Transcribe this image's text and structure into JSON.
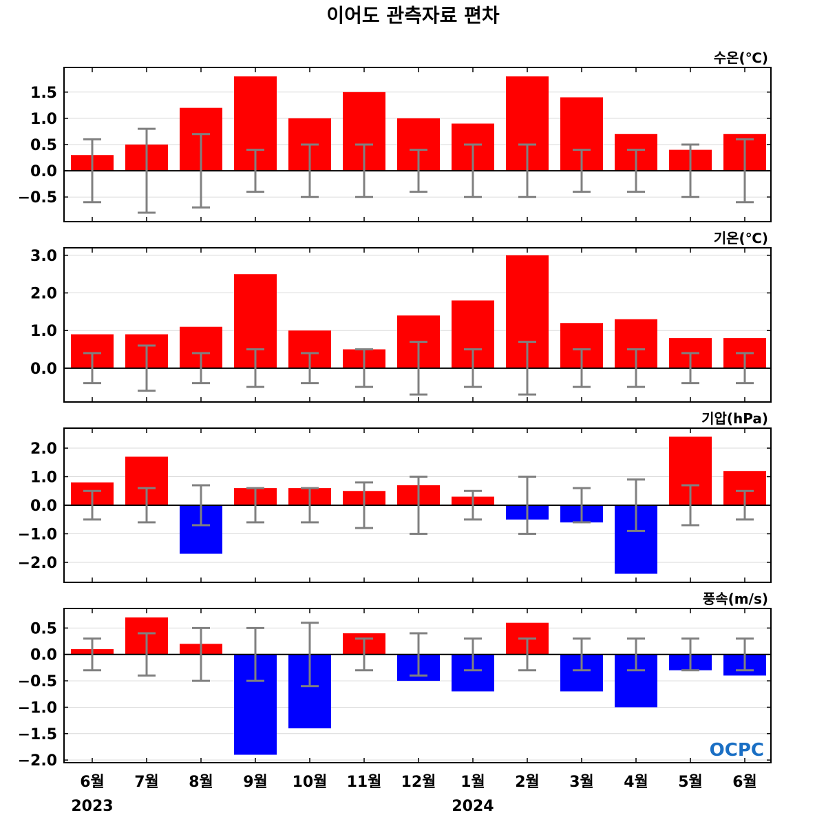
{
  "title": "이어도 관측자료 편차",
  "logo": "OCPC",
  "colors": {
    "positive": "#ff0000",
    "negative": "#0000ff",
    "error_bar": "#808080",
    "zero_line": "#000000",
    "grid": "#d9d9d9",
    "logo": "#1a6fc4"
  },
  "x_months": [
    "6월",
    "7월",
    "8월",
    "9월",
    "10월",
    "11월",
    "12월",
    "1월",
    "2월",
    "3월",
    "4월",
    "5월",
    "6월"
  ],
  "x_years": [
    {
      "label": "2023",
      "under_index": 0
    },
    {
      "label": "2024",
      "under_index": 7
    }
  ],
  "chart_data": [
    {
      "type": "bar",
      "unit": "수온(℃)",
      "categories": [
        "6월",
        "7월",
        "8월",
        "9월",
        "10월",
        "11월",
        "12월",
        "1월",
        "2월",
        "3월",
        "4월",
        "5월",
        "6월"
      ],
      "values": [
        0.3,
        0.5,
        1.2,
        1.8,
        1.0,
        1.5,
        1.0,
        0.9,
        1.8,
        1.4,
        0.7,
        0.4,
        0.7
      ],
      "error_upper": [
        0.6,
        0.8,
        0.7,
        0.4,
        0.5,
        0.5,
        0.4,
        0.5,
        0.5,
        0.4,
        0.4,
        0.5,
        0.6
      ],
      "error_lower": [
        -0.6,
        -0.8,
        -0.7,
        -0.4,
        -0.5,
        -0.5,
        -0.4,
        -0.5,
        -0.5,
        -0.4,
        -0.4,
        -0.5,
        -0.6
      ],
      "ylim": [
        -0.97,
        1.97
      ],
      "yticks": [
        -0.5,
        0.0,
        0.5,
        1.0,
        1.5
      ],
      "ytick_labels": [
        "−0.5",
        "0.0",
        "0.5",
        "1.0",
        "1.5"
      ]
    },
    {
      "type": "bar",
      "unit": "기온(℃)",
      "categories": [
        "6월",
        "7월",
        "8월",
        "9월",
        "10월",
        "11월",
        "12월",
        "1월",
        "2월",
        "3월",
        "4월",
        "5월",
        "6월"
      ],
      "values": [
        0.9,
        0.9,
        1.1,
        2.5,
        1.0,
        0.5,
        1.4,
        1.8,
        3.0,
        1.2,
        1.3,
        0.8,
        0.8
      ],
      "error_upper": [
        0.4,
        0.6,
        0.4,
        0.5,
        0.4,
        0.5,
        0.7,
        0.5,
        0.7,
        0.5,
        0.5,
        0.4,
        0.4
      ],
      "error_lower": [
        -0.4,
        -0.6,
        -0.4,
        -0.5,
        -0.4,
        -0.5,
        -0.7,
        -0.5,
        -0.7,
        -0.5,
        -0.5,
        -0.4,
        -0.4
      ],
      "ylim": [
        -0.9,
        3.2
      ],
      "yticks": [
        0.0,
        1.0,
        2.0,
        3.0
      ],
      "ytick_labels": [
        "0.0",
        "1.0",
        "2.0",
        "3.0"
      ]
    },
    {
      "type": "bar",
      "unit": "기압(hPa)",
      "categories": [
        "6월",
        "7월",
        "8월",
        "9월",
        "10월",
        "11월",
        "12월",
        "1월",
        "2월",
        "3월",
        "4월",
        "5월",
        "6월"
      ],
      "values": [
        0.8,
        1.7,
        -1.7,
        0.6,
        0.6,
        0.5,
        0.7,
        0.3,
        -0.5,
        -0.6,
        -2.4,
        2.4,
        1.2
      ],
      "error_upper": [
        0.5,
        0.6,
        0.7,
        0.6,
        0.6,
        0.8,
        1.0,
        0.5,
        1.0,
        0.6,
        0.9,
        0.7,
        0.5
      ],
      "error_lower": [
        -0.5,
        -0.6,
        -0.7,
        -0.6,
        -0.6,
        -0.8,
        -1.0,
        -0.5,
        -1.0,
        -0.6,
        -0.9,
        -0.7,
        -0.5
      ],
      "ylim": [
        -2.7,
        2.7
      ],
      "yticks": [
        -2.0,
        -1.0,
        0.0,
        1.0,
        2.0
      ],
      "ytick_labels": [
        "−2.0",
        "−1.0",
        "0.0",
        "1.0",
        "2.0"
      ]
    },
    {
      "type": "bar",
      "unit": "풍속(m/s)",
      "categories": [
        "6월",
        "7월",
        "8월",
        "9월",
        "10월",
        "11월",
        "12월",
        "1월",
        "2월",
        "3월",
        "4월",
        "5월",
        "6월"
      ],
      "values": [
        0.1,
        0.7,
        0.2,
        -1.9,
        -1.4,
        0.4,
        -0.5,
        -0.7,
        0.6,
        -0.7,
        -1.0,
        -0.3,
        -0.4
      ],
      "error_upper": [
        0.3,
        0.4,
        0.5,
        0.5,
        0.6,
        0.3,
        0.4,
        0.3,
        0.3,
        0.3,
        0.3,
        0.3,
        0.3
      ],
      "error_lower": [
        -0.3,
        -0.4,
        -0.5,
        -0.5,
        -0.6,
        -0.3,
        -0.4,
        -0.3,
        -0.3,
        -0.3,
        -0.3,
        -0.3,
        -0.3
      ],
      "ylim": [
        -2.05,
        0.87
      ],
      "yticks": [
        -2.0,
        -1.5,
        -1.0,
        -0.5,
        0.0,
        0.5
      ],
      "ytick_labels": [
        "−2.0",
        "−1.5",
        "−1.0",
        "−0.5",
        "0.0",
        "0.5"
      ]
    }
  ]
}
